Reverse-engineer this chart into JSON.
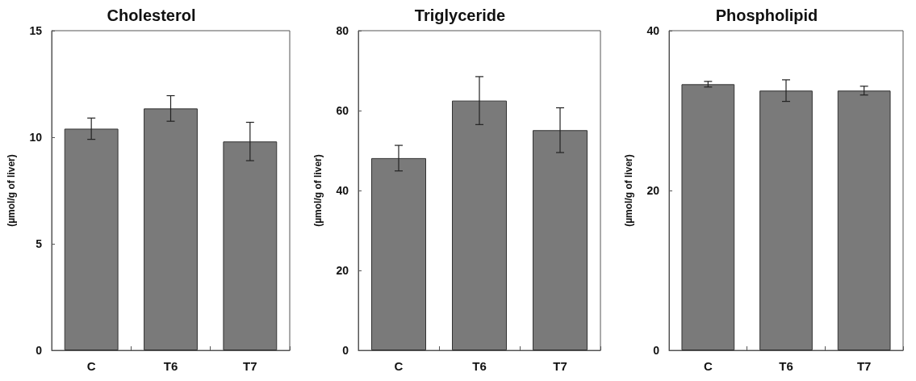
{
  "chart_data": [
    {
      "type": "bar",
      "title": "Cholesterol",
      "ylabel": "(µmol/g of liver)",
      "categories": [
        "C",
        "T6",
        "T7"
      ],
      "values": [
        10.4,
        11.35,
        9.8
      ],
      "errors": [
        0.5,
        0.6,
        0.9
      ],
      "color": "#7a7a7a",
      "ylim": [
        0,
        15
      ],
      "yticks": [
        0,
        5,
        10,
        15
      ]
    },
    {
      "type": "bar",
      "title": "Triglyceride",
      "ylabel": "(µmol/g of liver)",
      "categories": [
        "C",
        "T6",
        "T7"
      ],
      "values": [
        48.1,
        62.5,
        55.1
      ],
      "errors": [
        3.2,
        6,
        5.6
      ],
      "color": "#7a7a7a",
      "ylim": [
        0,
        80
      ],
      "yticks": [
        0,
        20,
        40,
        60,
        80
      ]
    },
    {
      "type": "bar",
      "title": "Phospholipid",
      "ylabel": "(µmol/g of liver)",
      "categories": [
        "C",
        "T6",
        "T7"
      ],
      "values": [
        33.3,
        32.5,
        32.5
      ],
      "errors": [
        0.35,
        1.35,
        0.55
      ],
      "color": "#7a7a7a",
      "ylim": [
        0,
        40
      ],
      "yticks": [
        0,
        20,
        40
      ]
    }
  ]
}
